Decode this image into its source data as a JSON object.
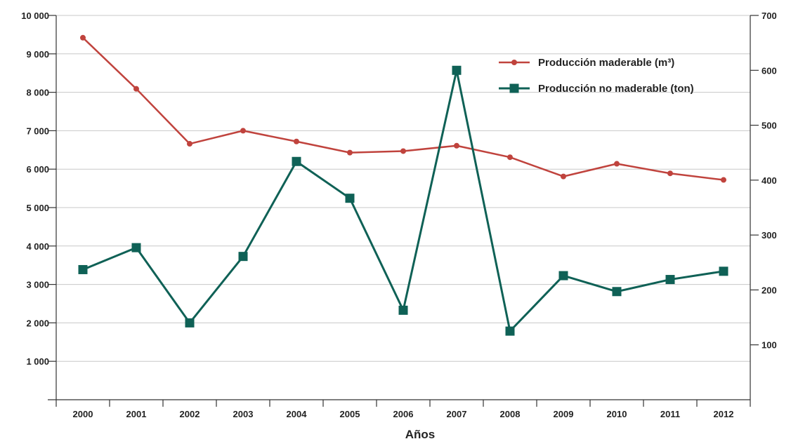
{
  "chart_data": {
    "type": "line",
    "xlabel": "Años",
    "x": [
      "2000",
      "2001",
      "2002",
      "2003",
      "2004",
      "2005",
      "2006",
      "2007",
      "2008",
      "2009",
      "2010",
      "2011",
      "2012"
    ],
    "y_left": {
      "range": [
        0,
        10000
      ],
      "ticks": [
        1000,
        2000,
        3000,
        4000,
        5000,
        6000,
        7000,
        8000,
        9000,
        10000
      ],
      "tick_labels": [
        "1 000",
        "2 000",
        "3 000",
        "4 000",
        "5 000",
        "6 000",
        "7 000",
        "8 000",
        "9 000",
        "10 000"
      ]
    },
    "y_right": {
      "range": [
        0,
        700
      ],
      "ticks": [
        100,
        200,
        300,
        400,
        500,
        600,
        700
      ],
      "tick_labels": [
        "100",
        "200",
        "300",
        "400",
        "500",
        "600",
        "700"
      ]
    },
    "grid": true,
    "legend": "top-right",
    "series": [
      {
        "name": "Producción maderable (m³)",
        "axis": "left",
        "color": "#c0433d",
        "marker": "circle",
        "values": [
          9420,
          8090,
          6660,
          7000,
          6720,
          6430,
          6470,
          6610,
          6310,
          5810,
          6140,
          5890,
          5720
        ]
      },
      {
        "name": "Producción no maderable (ton)",
        "axis": "right",
        "color": "#0f6156",
        "marker": "square",
        "values": [
          237,
          277,
          140,
          261,
          434,
          367,
          163,
          600,
          125,
          226,
          197,
          219,
          234
        ]
      }
    ]
  }
}
